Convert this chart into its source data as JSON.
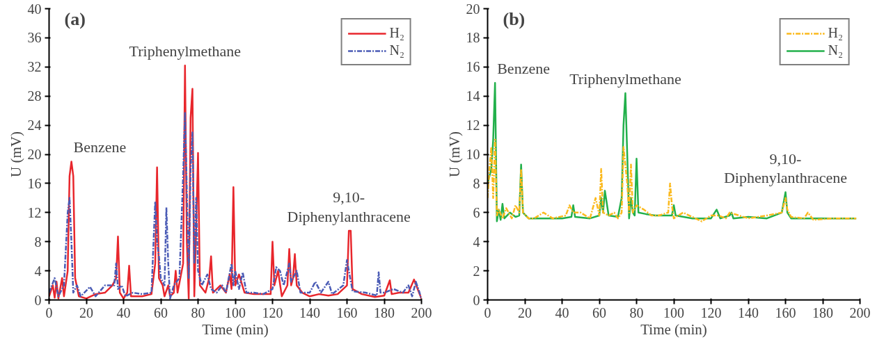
{
  "chart_data": [
    {
      "type": "line",
      "title": "(a)",
      "xlabel": "Time (min)",
      "ylabel": "U (mV)",
      "xlim": [
        0,
        200
      ],
      "xticks": [
        0,
        20,
        40,
        60,
        80,
        100,
        120,
        140,
        160,
        180,
        200
      ],
      "ylim": [
        0,
        40
      ],
      "yticks": [
        0,
        4,
        8,
        12,
        16,
        20,
        24,
        28,
        32,
        36,
        40
      ],
      "grid": false,
      "legend": "top right",
      "annotations": [
        {
          "text": "Benzene",
          "x": 12,
          "y": 19
        },
        {
          "text": "Triphenylmethane",
          "x": 73,
          "y": 32.2
        },
        {
          "text": "9,10-\nDiphenylanthracene",
          "x": 161,
          "y": 9.5
        }
      ],
      "series": [
        {
          "name": "H₂",
          "color": "#e8262c",
          "line_style": "solid",
          "x": [
            0,
            2,
            3,
            4,
            5,
            7,
            8,
            10,
            11,
            12,
            13,
            14,
            16,
            20,
            25,
            30,
            34,
            36,
            37,
            38,
            40,
            42,
            43,
            44,
            50,
            55,
            57,
            58,
            59,
            61,
            62,
            64,
            65,
            67,
            68,
            69,
            72,
            73,
            74,
            75,
            76,
            77,
            78,
            79,
            80,
            81,
            84,
            86,
            87,
            88,
            92,
            95,
            97,
            98,
            99,
            100,
            102,
            105,
            110,
            115,
            119,
            120,
            121,
            123,
            125,
            128,
            129,
            130,
            131,
            132,
            133,
            136,
            140,
            145,
            150,
            155,
            160,
            161,
            162,
            163,
            168,
            175,
            180,
            183,
            184,
            188,
            193,
            196,
            199,
            200
          ],
          "values": [
            0.5,
            2,
            0.3,
            2.5,
            0.2,
            3,
            0.5,
            4,
            17,
            19,
            17,
            3,
            0.5,
            0.2,
            0.8,
            1,
            2,
            3,
            8.7,
            1,
            0.2,
            1,
            4.7,
            0.5,
            0.5,
            0.8,
            5,
            18.2,
            3,
            2,
            0.5,
            2,
            0.5,
            1,
            4,
            1,
            5,
            32.2,
            8,
            0.2,
            25,
            29,
            0.5,
            10,
            20.2,
            2,
            1,
            3,
            6,
            1,
            2,
            1,
            3.5,
            1.5,
            15.5,
            2,
            3.5,
            1,
            0.8,
            0.8,
            0.8,
            8,
            2,
            4,
            0.5,
            2,
            7,
            2,
            3,
            6.3,
            2,
            1,
            0.5,
            0.8,
            0.6,
            0.8,
            2,
            9.5,
            9.5,
            1.5,
            0.8,
            0.4,
            0.6,
            2.7,
            0.8,
            1,
            1,
            2.8,
            0.8,
            0.2
          ]
        },
        {
          "name": "N₂",
          "color": "#4a5bb5",
          "line_style": "dashdot",
          "x": [
            0,
            3,
            5,
            8,
            10,
            11,
            12,
            13,
            15,
            17,
            22,
            25,
            30,
            35,
            36,
            37,
            39,
            41,
            45,
            50,
            55,
            57,
            58,
            59,
            60,
            62,
            63,
            64,
            65,
            67,
            70,
            72,
            73,
            74,
            75,
            76,
            77,
            78,
            79,
            80,
            82,
            85,
            87,
            90,
            93,
            95,
            98,
            99,
            100,
            102,
            104,
            106,
            110,
            115,
            120,
            122,
            124,
            126,
            128,
            129,
            130,
            133,
            135,
            140,
            143,
            146,
            150,
            152,
            158,
            160,
            161,
            163,
            170,
            176,
            177,
            178,
            180,
            185,
            190,
            193,
            195,
            197,
            199,
            200
          ],
          "values": [
            1,
            3,
            0.5,
            2,
            12,
            14,
            8,
            1,
            2,
            0.5,
            1.8,
            0.5,
            2,
            2,
            5,
            1.5,
            2,
            0.5,
            1,
            0.8,
            1,
            13.5,
            8,
            6,
            3,
            2,
            12.7,
            5,
            0.2,
            2,
            3,
            17,
            25.8,
            15,
            3,
            18,
            23,
            5,
            14,
            4,
            2,
            3.5,
            1.5,
            1,
            2,
            1,
            5,
            2,
            4,
            1.5,
            3.8,
            1,
            1,
            0.8,
            1.5,
            4.5,
            4,
            2,
            4,
            5,
            2.5,
            4,
            1,
            1,
            2.5,
            1,
            2.5,
            0.8,
            2,
            5.5,
            4,
            1.2,
            1,
            0.6,
            3.8,
            1,
            1,
            1.5,
            1,
            2,
            0.5,
            2.5,
            1,
            0
          ]
        }
      ]
    },
    {
      "type": "line",
      "title": "(b)",
      "xlabel": "Time (min)",
      "ylabel": "U (mV)",
      "xlim": [
        0,
        200
      ],
      "xticks": [
        0,
        20,
        40,
        60,
        80,
        100,
        120,
        140,
        160,
        180,
        200
      ],
      "ylim": [
        0,
        20
      ],
      "yticks": [
        0,
        2,
        4,
        6,
        8,
        10,
        12,
        14,
        16,
        18,
        20
      ],
      "grid": false,
      "legend": "top right",
      "annotations": [
        {
          "text": "Benzene",
          "x": 4,
          "y": 14.9
        },
        {
          "text": "Triphenylmethane",
          "x": 74,
          "y": 14.2
        },
        {
          "text": "9,10-\nDiphenylanthracene",
          "x": 160,
          "y": 7.4
        }
      ],
      "series": [
        {
          "name": "H₂",
          "color": "#fbb91c",
          "line_style": "dashdot",
          "x": [
            0,
            1,
            2,
            3,
            4,
            5,
            6,
            8,
            10,
            13,
            15,
            17,
            18,
            19,
            22,
            25,
            30,
            35,
            42,
            44,
            46,
            50,
            55,
            58,
            60,
            61,
            62,
            65,
            68,
            70,
            72,
            73,
            75,
            76,
            77,
            78,
            80,
            84,
            88,
            92,
            97,
            98,
            99,
            100,
            105,
            110,
            115,
            120,
            124,
            128,
            130,
            135,
            140,
            150,
            158,
            160,
            161,
            163,
            170,
            172,
            175,
            185,
            198
          ],
          "values": [
            7,
            9,
            10.5,
            7,
            11,
            5.8,
            6.2,
            5.6,
            6.3,
            5.6,
            6.5,
            6,
            9,
            6,
            5.6,
            5.6,
            6,
            5.6,
            5.8,
            6.5,
            6,
            6,
            5.6,
            7,
            5.8,
            9,
            6,
            5.8,
            6,
            5.6,
            6,
            10.5,
            8,
            6,
            9.3,
            6,
            6.5,
            6.2,
            5.8,
            5.8,
            6,
            8,
            6.5,
            5.6,
            6,
            5.7,
            5.4,
            5.8,
            5.8,
            5.6,
            6,
            5.8,
            5.6,
            5.8,
            6,
            7,
            6.2,
            5.7,
            5.6,
            6,
            5.5,
            5.6,
            5.6
          ]
        },
        {
          "name": "N₂",
          "color": "#22b04b",
          "line_style": "solid",
          "x": [
            0,
            2,
            3,
            4,
            5,
            6,
            7,
            8,
            9,
            12,
            15,
            17,
            18,
            19,
            22,
            30,
            40,
            45,
            46,
            47,
            55,
            60,
            61,
            62,
            63,
            65,
            70,
            72,
            73,
            74,
            75,
            76,
            77,
            78,
            79,
            80,
            81,
            85,
            90,
            95,
            99,
            100,
            101,
            110,
            120,
            123,
            125,
            130,
            131,
            132,
            140,
            150,
            158,
            160,
            161,
            163,
            175,
            198
          ],
          "values": [
            8,
            9,
            11,
            14.9,
            5.4,
            6.2,
            5.5,
            6.6,
            5.6,
            6,
            5.7,
            5.8,
            9.3,
            6,
            5.6,
            5.6,
            5.6,
            5.7,
            6.5,
            5.7,
            5.6,
            5.8,
            7,
            6,
            7.5,
            5.8,
            5.7,
            7,
            12,
            14.2,
            10,
            5.6,
            7,
            6,
            5.8,
            9.7,
            6,
            5.9,
            5.8,
            5.8,
            5.8,
            6.5,
            5.8,
            5.6,
            5.6,
            6.2,
            5.6,
            5.8,
            6,
            5.6,
            5.7,
            5.6,
            6,
            7.4,
            6,
            5.6,
            5.6,
            5.6
          ]
        }
      ]
    }
  ]
}
